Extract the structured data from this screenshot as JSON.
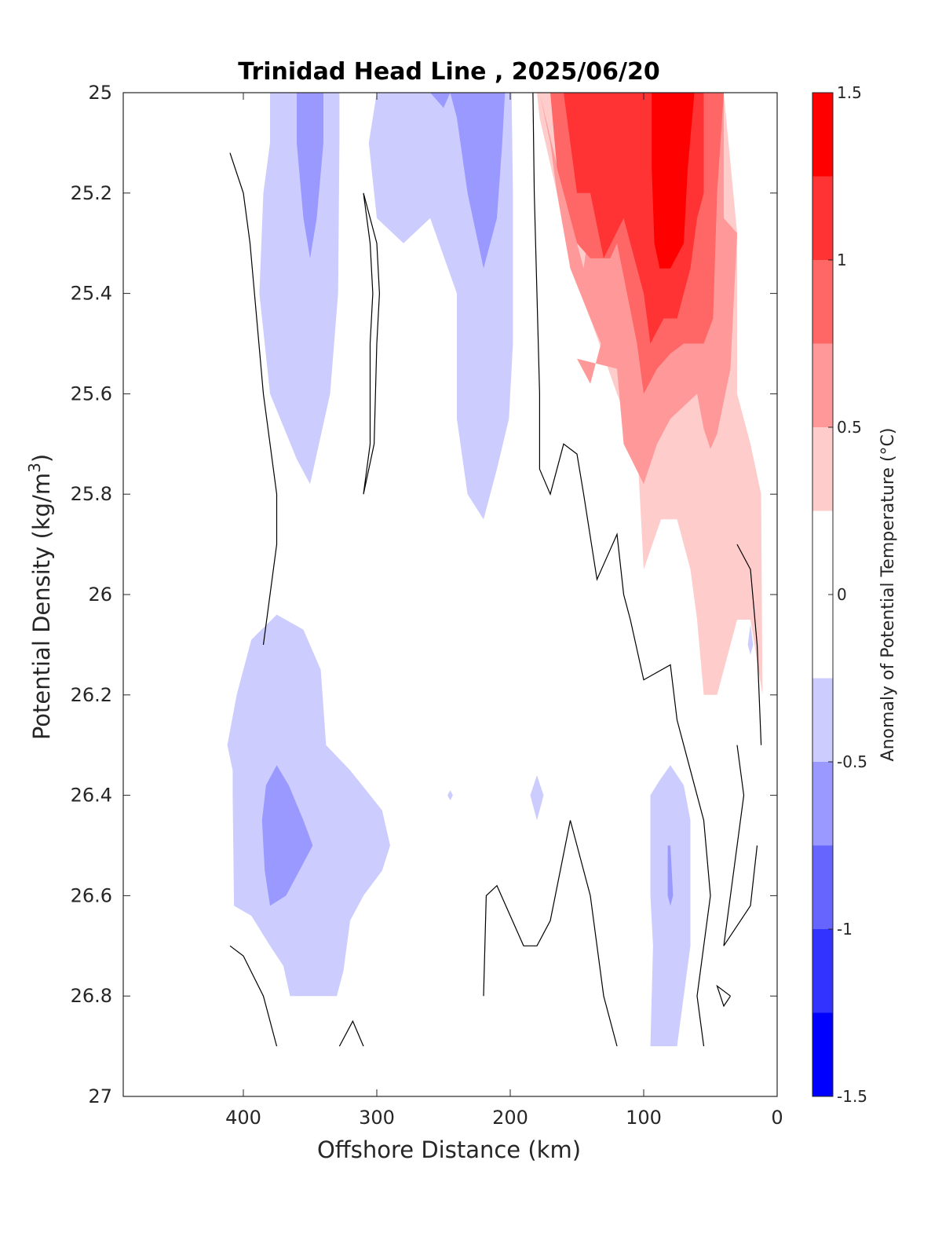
{
  "chart_data": {
    "type": "contour",
    "title": "Trinidad Head Line , 2025/06/20",
    "xlabel": "Offshore Distance (km)",
    "ylabel_main": "Potential Density (kg/m",
    "ylabel_sup": "3",
    "ylabel_close": ")",
    "xlim": [
      490,
      0
    ],
    "ylim": [
      25,
      27
    ],
    "y_reversed": true,
    "x_reversed": true,
    "grid": false,
    "xticks": [
      400,
      300,
      200,
      100,
      0
    ],
    "xtick_labels": [
      "400",
      "300",
      "200",
      "100",
      "0"
    ],
    "yticks": [
      25,
      25.2,
      25.4,
      25.6,
      25.8,
      26,
      26.2,
      26.4,
      26.6,
      26.8,
      27
    ],
    "ytick_labels": [
      "25",
      "25.2",
      "25.4",
      "25.6",
      "25.8",
      "26",
      "26.2",
      "26.4",
      "26.6",
      "26.8",
      "27"
    ],
    "colorbar": {
      "label": "Anomaly of Potential Temperature (°C)",
      "range": [
        -1.5,
        1.5
      ],
      "tick_values": [
        1.5,
        1,
        0.5,
        0,
        -0.5,
        -1,
        -1.5
      ],
      "tick_labels": [
        "1.5",
        "1",
        "0.5",
        "0",
        "-0.5",
        "-1",
        "-1.5"
      ],
      "levels": [
        -1.5,
        -1.25,
        -1,
        -0.75,
        -0.5,
        -0.25,
        0.25,
        0.5,
        0.75,
        1,
        1.25,
        1.5
      ],
      "colors": [
        "#0000ff",
        "#3333ff",
        "#6666ff",
        "#9999ff",
        "#ccccff",
        "#ffffff",
        "#ffcccc",
        "#ff9999",
        "#ff6666",
        "#ff3333",
        "#ff0000"
      ]
    },
    "filled_regions": [
      {
        "level": -0.25,
        "color": "#ccccff",
        "points": [
          [
            380,
            25
          ],
          [
            328,
            25
          ],
          [
            328,
            25.1
          ],
          [
            329,
            25.4
          ],
          [
            335,
            25.6
          ],
          [
            350,
            25.78
          ],
          [
            360,
            25.73
          ],
          [
            380,
            25.6
          ],
          [
            388,
            25.4
          ],
          [
            385,
            25.2
          ],
          [
            380,
            25.1
          ],
          [
            380,
            25
          ]
        ]
      },
      {
        "level": -0.5,
        "color": "#9999ff",
        "points": [
          [
            360,
            25
          ],
          [
            340,
            25
          ],
          [
            340,
            25.1
          ],
          [
            345,
            25.25
          ],
          [
            350,
            25.33
          ],
          [
            355,
            25.25
          ],
          [
            360,
            25.1
          ],
          [
            360,
            25
          ]
        ]
      },
      {
        "level": -0.25,
        "color": "#ccccff",
        "points": [
          [
            300,
            25
          ],
          [
            199,
            25
          ],
          [
            198,
            25.2
          ],
          [
            198,
            25.5
          ],
          [
            201,
            25.65
          ],
          [
            210,
            25.75
          ],
          [
            220,
            25.85
          ],
          [
            232,
            25.8
          ],
          [
            240,
            25.65
          ],
          [
            240,
            25.4
          ],
          [
            260,
            25.25
          ],
          [
            280,
            25.3
          ],
          [
            300,
            25.25
          ],
          [
            306,
            25.1
          ],
          [
            300,
            25
          ]
        ]
      },
      {
        "level": -0.5,
        "color": "#9999ff",
        "points": [
          [
            260,
            25
          ],
          [
            245,
            25
          ],
          [
            250,
            25.03
          ],
          [
            260,
            25
          ]
        ]
      },
      {
        "level": -0.5,
        "color": "#9999ff",
        "points": [
          [
            245,
            25
          ],
          [
            204,
            25
          ],
          [
            206,
            25.1
          ],
          [
            210,
            25.25
          ],
          [
            220,
            25.35
          ],
          [
            232,
            25.2
          ],
          [
            240,
            25.05
          ],
          [
            245,
            25
          ]
        ]
      },
      {
        "level": -0.25,
        "color": "#ccccff",
        "points": [
          [
            375,
            26.04
          ],
          [
            355,
            26.07
          ],
          [
            342,
            26.15
          ],
          [
            338,
            26.3
          ],
          [
            320,
            26.35
          ],
          [
            296,
            26.43
          ],
          [
            290,
            26.5
          ],
          [
            296,
            26.55
          ],
          [
            310,
            26.6
          ],
          [
            320,
            26.65
          ],
          [
            325,
            26.75
          ],
          [
            330,
            26.8
          ],
          [
            365,
            26.8
          ],
          [
            370,
            26.74
          ],
          [
            380,
            26.7
          ],
          [
            394,
            26.64
          ],
          [
            407,
            26.62
          ],
          [
            408,
            26.4
          ],
          [
            408,
            26.35
          ],
          [
            412,
            26.3
          ],
          [
            405,
            26.2
          ],
          [
            394,
            26.09
          ],
          [
            375,
            26.04
          ]
        ]
      },
      {
        "level": -0.5,
        "color": "#9999ff",
        "points": [
          [
            375,
            26.34
          ],
          [
            366,
            26.38
          ],
          [
            355,
            26.45
          ],
          [
            348,
            26.5
          ],
          [
            358,
            26.55
          ],
          [
            368,
            26.6
          ],
          [
            380,
            26.62
          ],
          [
            384,
            26.55
          ],
          [
            386,
            26.45
          ],
          [
            383,
            26.38
          ],
          [
            375,
            26.34
          ]
        ]
      },
      {
        "level": -0.25,
        "color": "#ccccff",
        "points": [
          [
            180,
            26.36
          ],
          [
            175,
            26.4
          ],
          [
            180,
            26.45
          ],
          [
            185,
            26.4
          ],
          [
            180,
            26.36
          ]
        ]
      },
      {
        "level": -0.25,
        "color": "#ccccff",
        "points": [
          [
            245,
            26.39
          ],
          [
            243,
            26.4
          ],
          [
            245,
            26.41
          ],
          [
            247,
            26.4
          ],
          [
            245,
            26.39
          ]
        ]
      },
      {
        "level": -0.25,
        "color": "#ccccff",
        "points": [
          [
            80,
            26.34
          ],
          [
            70,
            26.38
          ],
          [
            65,
            26.45
          ],
          [
            65,
            26.7
          ],
          [
            70,
            26.8
          ],
          [
            75,
            26.9
          ],
          [
            95,
            26.9
          ],
          [
            93,
            26.7
          ],
          [
            95,
            26.6
          ],
          [
            95,
            26.4
          ],
          [
            88,
            26.37
          ],
          [
            80,
            26.34
          ]
        ]
      },
      {
        "level": -0.5,
        "color": "#9999ff",
        "points": [
          [
            80,
            26.5
          ],
          [
            78,
            26.6
          ],
          [
            80,
            26.62
          ],
          [
            82,
            26.6
          ],
          [
            82,
            26.5
          ],
          [
            80,
            26.5
          ]
        ]
      },
      {
        "level": -0.25,
        "color": "#ccccff",
        "points": [
          [
            20,
            26.06
          ],
          [
            18,
            26.1
          ],
          [
            20,
            26.12
          ],
          [
            22,
            26.1
          ],
          [
            20,
            26.06
          ]
        ]
      },
      {
        "level": 0.25,
        "color": "#ffcccc",
        "points": [
          [
            180,
            25
          ],
          [
            150,
            25
          ],
          [
            130,
            25
          ],
          [
            110,
            25
          ],
          [
            40,
            25
          ],
          [
            30,
            25.28
          ],
          [
            30,
            25.6
          ],
          [
            20,
            25.7
          ],
          [
            12,
            25.8
          ],
          [
            11,
            26.2
          ],
          [
            20,
            26.05
          ],
          [
            30,
            26.05
          ],
          [
            45,
            26.2
          ],
          [
            55,
            26.2
          ],
          [
            60,
            26.05
          ],
          [
            65,
            25.95
          ],
          [
            75,
            25.85
          ],
          [
            87,
            25.85
          ],
          [
            100,
            25.95
          ],
          [
            105,
            25.7
          ],
          [
            120,
            25.6
          ],
          [
            140,
            25.45
          ],
          [
            165,
            25.2
          ],
          [
            178,
            25.05
          ],
          [
            180,
            25
          ]
        ]
      },
      {
        "level": 0.5,
        "color": "#ff9999",
        "points": [
          [
            178,
            25
          ],
          [
            170,
            25.1
          ],
          [
            165,
            25.2
          ],
          [
            155,
            25.35
          ],
          [
            140,
            25.45
          ],
          [
            132,
            25.5
          ],
          [
            140,
            25.58
          ],
          [
            150,
            25.53
          ],
          [
            120,
            25.55
          ],
          [
            115,
            25.7
          ],
          [
            100,
            25.78
          ],
          [
            90,
            25.7
          ],
          [
            80,
            25.65
          ],
          [
            60,
            25.6
          ],
          [
            55,
            25.67
          ],
          [
            50,
            25.71
          ],
          [
            45,
            25.68
          ],
          [
            35,
            25.55
          ],
          [
            30,
            25.28
          ],
          [
            40,
            25.25
          ],
          [
            40,
            25
          ],
          [
            100,
            25
          ],
          [
            115,
            25.15
          ],
          [
            125,
            25.05
          ],
          [
            135,
            25.15
          ],
          [
            145,
            25.35
          ],
          [
            160,
            25.2
          ],
          [
            178,
            25
          ]
        ]
      },
      {
        "level": 0.75,
        "color": "#ff6666",
        "points": [
          [
            170,
            25
          ],
          [
            165,
            25.15
          ],
          [
            150,
            25.3
          ],
          [
            140,
            25.33
          ],
          [
            125,
            25.33
          ],
          [
            120,
            25.3
          ],
          [
            105,
            25.5
          ],
          [
            100,
            25.6
          ],
          [
            90,
            25.55
          ],
          [
            80,
            25.52
          ],
          [
            70,
            25.5
          ],
          [
            55,
            25.5
          ],
          [
            48,
            25.45
          ],
          [
            45,
            25.2
          ],
          [
            40,
            25
          ],
          [
            170,
            25
          ]
        ]
      },
      {
        "level": 1.0,
        "color": "#ff3333",
        "points": [
          [
            160,
            25
          ],
          [
            150,
            25.2
          ],
          [
            140,
            25.2
          ],
          [
            130,
            25.33
          ],
          [
            115,
            25.25
          ],
          [
            110,
            25.3
          ],
          [
            100,
            25.4
          ],
          [
            95,
            25.5
          ],
          [
            85,
            25.45
          ],
          [
            75,
            25.45
          ],
          [
            65,
            25.35
          ],
          [
            60,
            25.25
          ],
          [
            55,
            25.2
          ],
          [
            55,
            25
          ],
          [
            160,
            25
          ]
        ]
      },
      {
        "level": 1.25,
        "color": "#ff0000",
        "points": [
          [
            94,
            25
          ],
          [
            94,
            25.15
          ],
          [
            92,
            25.3
          ],
          [
            88,
            25.35
          ],
          [
            80,
            25.35
          ],
          [
            70,
            25.3
          ],
          [
            67,
            25.15
          ],
          [
            62,
            25
          ],
          [
            94,
            25
          ]
        ]
      }
    ],
    "zero_contours": [
      [
        [
          410,
          25.12
        ],
        [
          400,
          25.2
        ],
        [
          395,
          25.3
        ],
        [
          385,
          25.6
        ],
        [
          375,
          25.8
        ],
        [
          375,
          25.9
        ],
        [
          380,
          26
        ],
        [
          385,
          26.1
        ]
      ],
      [
        [
          310,
          25.2
        ],
        [
          305,
          25.3
        ],
        [
          303,
          25.4
        ],
        [
          305,
          25.5
        ],
        [
          305,
          25.7
        ],
        [
          310,
          25.8
        ],
        [
          310,
          25.8
        ],
        [
          302,
          25.7
        ],
        [
          300,
          25.5
        ],
        [
          298,
          25.4
        ],
        [
          300,
          25.3
        ],
        [
          310,
          25.2
        ]
      ],
      [
        [
          183,
          25
        ],
        [
          182,
          25.2
        ],
        [
          180,
          25.4
        ],
        [
          178,
          25.6
        ],
        [
          178,
          25.75
        ],
        [
          170,
          25.8
        ],
        [
          160,
          25.7
        ],
        [
          150,
          25.72
        ],
        [
          145,
          25.8
        ],
        [
          135,
          25.97
        ],
        [
          120,
          25.88
        ],
        [
          115,
          26.0
        ],
        [
          110,
          26.05
        ],
        [
          100,
          26.17
        ],
        [
          80,
          26.14
        ],
        [
          75,
          26.25
        ],
        [
          65,
          26.35
        ],
        [
          55,
          26.45
        ],
        [
          50,
          26.6
        ],
        [
          60,
          26.8
        ],
        [
          55,
          26.9
        ]
      ],
      [
        [
          410,
          26.7
        ],
        [
          400,
          26.72
        ],
        [
          385,
          26.8
        ],
        [
          375,
          26.9
        ]
      ],
      [
        [
          310,
          26.9
        ],
        [
          318,
          26.85
        ],
        [
          328,
          26.9
        ]
      ],
      [
        [
          220,
          26.8
        ],
        [
          218,
          26.6
        ],
        [
          210,
          26.58
        ],
        [
          190,
          26.7
        ],
        [
          180,
          26.7
        ],
        [
          170,
          26.65
        ],
        [
          155,
          26.45
        ],
        [
          140,
          26.6
        ],
        [
          130,
          26.8
        ],
        [
          120,
          26.9
        ]
      ],
      [
        [
          30,
          25.9
        ],
        [
          20,
          25.95
        ],
        [
          15,
          26.1
        ],
        [
          12,
          26.3
        ]
      ],
      [
        [
          30,
          26.3
        ],
        [
          25,
          26.4
        ],
        [
          35,
          26.6
        ],
        [
          40,
          26.7
        ],
        [
          20,
          26.62
        ],
        [
          15,
          26.5
        ]
      ],
      [
        [
          35,
          26.8
        ],
        [
          40,
          26.82
        ],
        [
          45,
          26.78
        ],
        [
          35,
          26.8
        ]
      ]
    ]
  }
}
